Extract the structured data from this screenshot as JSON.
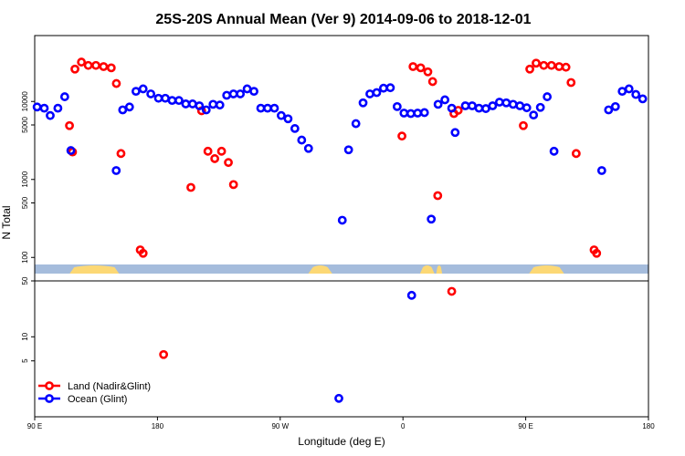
{
  "chart_data": {
    "type": "scatter",
    "title": "25S-20S Annual Mean (Ver 9)   2014-09-06 to 2018-12-01",
    "xlabel": "Longitude (deg E)",
    "ylabel": "N Total",
    "x_range": [
      90,
      450
    ],
    "x_ticks": [
      {
        "value": 90,
        "label": "90 E"
      },
      {
        "value": 162,
        "label": "180"
      },
      {
        "value": 234,
        "label": "90 W"
      },
      {
        "value": 306,
        "label": "0"
      },
      {
        "value": 378,
        "label": "90 E"
      },
      {
        "value": 450,
        "label": "180"
      }
    ],
    "top_panel": {
      "y_scale": "log",
      "y_range": [
        50,
        70000
      ],
      "y_ticks": [
        {
          "value": 100,
          "label": "100"
        },
        {
          "value": 500,
          "label": "500"
        },
        {
          "value": 1000,
          "label": "1000"
        },
        {
          "value": 5000,
          "label": "5000"
        },
        {
          "value": 10000,
          "label": "10000"
        }
      ],
      "series": [
        {
          "name": "Land (Nadir&Glint)",
          "color": "#ff0000",
          "points": [
            [
              110.4,
              4900
            ],
            [
              112.2,
              2250
            ],
            [
              113.6,
              26000
            ],
            [
              117.4,
              32000
            ],
            [
              121.4,
              29000
            ],
            [
              125.9,
              29000
            ],
            [
              130.4,
              28000
            ],
            [
              134.9,
              27000
            ],
            [
              137.9,
              17000
            ],
            [
              140.6,
              2150
            ],
            [
              151.9,
              125
            ],
            [
              153.6,
              113
            ],
            [
              181.6,
              790
            ],
            [
              187.9,
              7600
            ],
            [
              191.6,
              2300
            ],
            [
              195.6,
              1850
            ],
            [
              199.6,
              2300
            ],
            [
              203.6,
              1650
            ],
            [
              206.6,
              860
            ],
            [
              305.4,
              3600
            ],
            [
              311.9,
              28000
            ],
            [
              316.4,
              27000
            ],
            [
              320.6,
              24000
            ],
            [
              323.4,
              18000
            ],
            [
              326.4,
              620
            ],
            [
              335.9,
              7000
            ],
            [
              338.4,
              7700
            ],
            [
              376.6,
              4900
            ],
            [
              380.4,
              26000
            ],
            [
              384.1,
              31000
            ],
            [
              388.6,
              29000
            ],
            [
              393.1,
              29000
            ],
            [
              397.6,
              28000
            ],
            [
              401.6,
              27500
            ],
            [
              404.6,
              17500
            ],
            [
              407.6,
              2150
            ],
            [
              418.1,
              125
            ],
            [
              419.6,
              113
            ]
          ]
        },
        {
          "name": "Ocean (Glint)",
          "color": "#0000ff",
          "points": [
            [
              91.4,
              8500
            ],
            [
              95.6,
              8200
            ],
            [
              99.1,
              6600
            ],
            [
              103.6,
              8200
            ],
            [
              107.6,
              11500
            ],
            [
              111.2,
              2350
            ],
            [
              137.8,
              1300
            ],
            [
              141.6,
              7800
            ],
            [
              145.6,
              8500
            ],
            [
              149.4,
              13500
            ],
            [
              153.6,
              14500
            ],
            [
              158.1,
              12500
            ],
            [
              162.6,
              11000
            ],
            [
              166.6,
              11000
            ],
            [
              170.6,
              10300
            ],
            [
              174.6,
              10300
            ],
            [
              178.6,
              9300
            ],
            [
              182.6,
              9300
            ],
            [
              186.6,
              8800
            ],
            [
              190.6,
              7800
            ],
            [
              194.6,
              9200
            ],
            [
              198.6,
              9000
            ],
            [
              202.6,
              12000
            ],
            [
              206.6,
              12500
            ],
            [
              210.6,
              12500
            ],
            [
              214.6,
              14500
            ],
            [
              218.6,
              13500
            ],
            [
              222.6,
              8200
            ],
            [
              226.6,
              8200
            ],
            [
              230.6,
              8200
            ],
            [
              234.6,
              6600
            ],
            [
              238.6,
              6000
            ],
            [
              242.6,
              4500
            ],
            [
              246.6,
              3200
            ],
            [
              250.6,
              2500
            ],
            [
              270.4,
              300
            ],
            [
              274.1,
              2400
            ],
            [
              278.4,
              5200
            ],
            [
              282.6,
              9600
            ],
            [
              286.6,
              12500
            ],
            [
              290.6,
              13000
            ],
            [
              294.6,
              14800
            ],
            [
              298.6,
              15000
            ],
            [
              302.6,
              8600
            ],
            [
              306.6,
              7100
            ],
            [
              310.6,
              7000
            ],
            [
              314.6,
              7100
            ],
            [
              318.6,
              7200
            ],
            [
              322.6,
              310
            ],
            [
              326.6,
              9200
            ],
            [
              330.6,
              10500
            ],
            [
              334.6,
              8200
            ],
            [
              336.6,
              4000
            ],
            [
              342.6,
              8800
            ],
            [
              346.6,
              8800
            ],
            [
              350.6,
              8200
            ],
            [
              354.6,
              8100
            ],
            [
              358.6,
              8800
            ],
            [
              362.6,
              9800
            ],
            [
              366.6,
              9600
            ],
            [
              370.6,
              9200
            ],
            [
              374.6,
              8800
            ],
            [
              378.6,
              8300
            ],
            [
              382.6,
              6700
            ],
            [
              386.6,
              8400
            ],
            [
              390.6,
              11500
            ],
            [
              394.6,
              2300
            ],
            [
              422.6,
              1300
            ],
            [
              426.6,
              7800
            ],
            [
              430.6,
              8600
            ],
            [
              434.6,
              13500
            ],
            [
              438.6,
              14500
            ],
            [
              442.6,
              12300
            ],
            [
              446.6,
              10800
            ]
          ]
        }
      ]
    },
    "bottom_panel": {
      "y_scale": "log",
      "y_range": [
        1,
        50
      ],
      "y_ticks": [
        {
          "value": 5,
          "label": "5"
        },
        {
          "value": 10,
          "label": "10"
        },
        {
          "value": 50,
          "label": "50"
        }
      ],
      "series": [
        {
          "name": "Land (Nadir&Glint)",
          "color": "#ff0000",
          "points": [
            [
              165.6,
              6
            ],
            [
              334.6,
              37
            ]
          ]
        },
        {
          "name": "Ocean (Glint)",
          "color": "#0000ff",
          "points": [
            [
              268.4,
              1.7
            ],
            [
              311.1,
              33
            ]
          ]
        }
      ]
    },
    "legend": {
      "placement": "bottom-left",
      "entries": [
        {
          "label": "Land (Nadir&Glint)",
          "color": "#ff0000"
        },
        {
          "label": "Ocean (Glint)",
          "color": "#0000ff"
        }
      ]
    },
    "surface_strip": {
      "ocean_color": "#a5bcdc",
      "land_color": "#fcd875",
      "land_spans": [
        [
          110.5,
          139.5
        ],
        [
          250.5,
          264.5
        ],
        [
          316,
          324.5
        ],
        [
          325.5,
          329
        ],
        [
          380,
          400.5
        ]
      ]
    }
  }
}
